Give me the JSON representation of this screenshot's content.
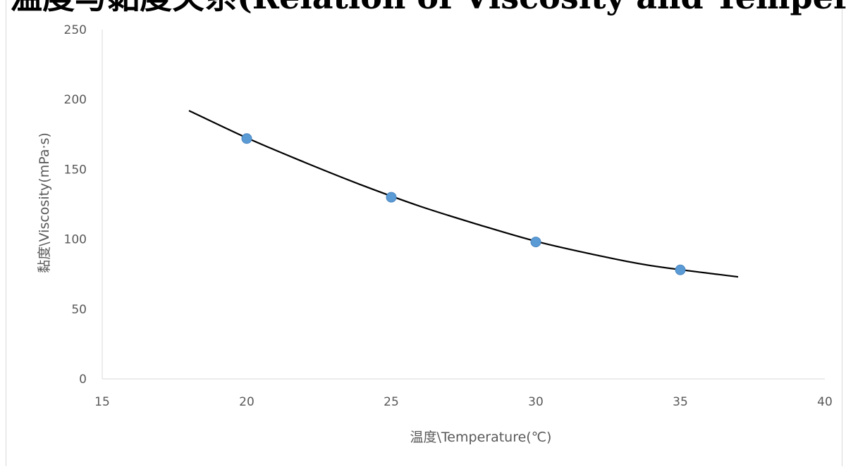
{
  "chart_data": {
    "type": "scatter",
    "title": "温度与黏度关系(Relation of Viscosity and Temperature)",
    "xlabel": "温度\\Temperature(℃)",
    "ylabel": "黏度\\Viscosity(mPa·s)",
    "xlim": [
      15,
      40
    ],
    "ylim": [
      0,
      250
    ],
    "x_ticks": [
      "15",
      "20",
      "25",
      "30",
      "35",
      "40"
    ],
    "y_ticks": [
      "0",
      "50",
      "100",
      "150",
      "200",
      "250"
    ],
    "grid": false,
    "legend": "none",
    "series": [
      {
        "x": [
          20,
          25,
          30,
          35
        ],
        "y": [
          172,
          130,
          98,
          78
        ],
        "color": "#5b9bd5"
      }
    ],
    "trendline": {
      "type": "polynomial",
      "color": "#000000",
      "x": [
        18,
        20,
        22,
        24,
        26,
        28,
        30,
        32,
        34,
        37
      ],
      "y": [
        192,
        172.5,
        155,
        138.5,
        123.5,
        110.5,
        98.5,
        89,
        81,
        73
      ]
    }
  }
}
